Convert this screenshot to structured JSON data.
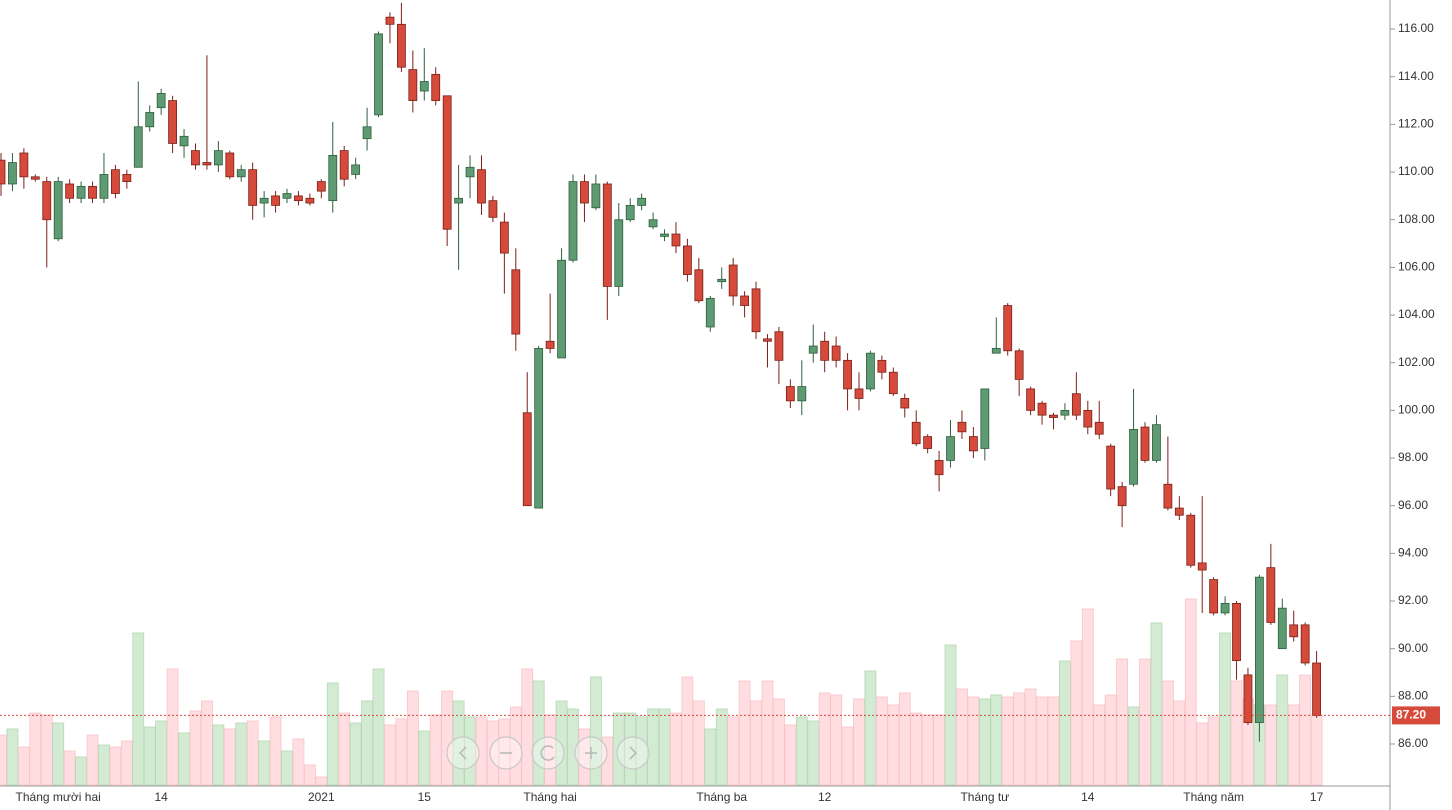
{
  "chart_data": {
    "type": "candlestick",
    "categories": [
      null,
      null,
      null,
      null,
      null,
      "Tháng mười hai",
      null,
      null,
      null,
      null,
      null,
      null,
      null,
      null,
      "14",
      null,
      null,
      null,
      null,
      null,
      null,
      null,
      null,
      null,
      null,
      null,
      null,
      null,
      "2021",
      null,
      null,
      null,
      null,
      null,
      null,
      null,
      null,
      "15",
      null,
      null,
      null,
      null,
      null,
      null,
      null,
      null,
      null,
      null,
      "Tháng hai",
      null,
      null,
      null,
      null,
      null,
      null,
      null,
      null,
      null,
      null,
      null,
      null,
      null,
      null,
      "Tháng ba",
      null,
      null,
      null,
      null,
      null,
      null,
      null,
      null,
      "12",
      null,
      null,
      null,
      null,
      null,
      null,
      null,
      null,
      null,
      null,
      null,
      null,
      null,
      "Tháng tư",
      null,
      null,
      null,
      null,
      null,
      null,
      null,
      null,
      "14",
      null,
      null,
      null,
      null,
      null,
      null,
      null,
      null,
      null,
      null,
      "Tháng năm",
      null,
      null,
      null,
      null,
      null,
      null,
      null,
      null,
      "17"
    ],
    "open": [
      110.5,
      109.5,
      110.8,
      109.8,
      109.6,
      107.2,
      109.5,
      108.9,
      109.4,
      108.9,
      110.1,
      109.9,
      110.2,
      111.9,
      112.7,
      113.0,
      111.1,
      110.9,
      110.4,
      110.3,
      110.8,
      109.8,
      110.1,
      108.7,
      109.0,
      108.9,
      109.0,
      108.9,
      109.6,
      108.8,
      110.9,
      109.9,
      111.4,
      112.4,
      116.5,
      116.2,
      114.3,
      113.4,
      114.1,
      113.2,
      108.7,
      109.8,
      110.1,
      108.8,
      107.9,
      105.9,
      99.9,
      95.9,
      102.9,
      102.2,
      106.3,
      109.6,
      108.5,
      109.5,
      105.2,
      108.0,
      108.6,
      107.7,
      107.3,
      107.4,
      106.9,
      105.9,
      103.5,
      105.4,
      106.1,
      104.8,
      105.1,
      103.0,
      103.3,
      101.0,
      100.4,
      102.4,
      102.9,
      102.7,
      102.1,
      100.9,
      100.9,
      102.1,
      101.6,
      100.5,
      99.5,
      98.9,
      97.9,
      97.9,
      99.5,
      98.9,
      98.4,
      102.4,
      104.4,
      102.5,
      100.9,
      100.3,
      99.8,
      99.8,
      100.7,
      100.0,
      99.5,
      98.5,
      96.8,
      96.9,
      99.3,
      97.9,
      96.9,
      95.9,
      95.6,
      93.6,
      92.9,
      91.5,
      91.9,
      88.9,
      86.9,
      93.4,
      90.0,
      91.0,
      91.0,
      89.4
    ],
    "high": [
      110.8,
      110.8,
      111,
      109.9,
      109.8,
      109.8,
      109.7,
      109.6,
      109.6,
      110.8,
      110.3,
      110.1,
      113.8,
      112.8,
      113.5,
      113.2,
      111.8,
      111.2,
      114.9,
      111.3,
      110.9,
      110.3,
      110.4,
      109.2,
      109.2,
      109.3,
      109.2,
      109.1,
      109.7,
      112.1,
      111.1,
      110.6,
      112.7,
      115.9,
      116.7,
      117.1,
      115.1,
      115.2,
      114.4,
      113.2,
      110.3,
      110.7,
      110.7,
      109.0,
      108.3,
      106.8,
      101.6,
      102.7,
      104.9,
      106.8,
      109.9,
      109.9,
      109.9,
      109.6,
      108.7,
      108.9,
      109.1,
      108.3,
      107.6,
      107.9,
      107.2,
      106.4,
      104.8,
      106.0,
      106.4,
      105.0,
      105.4,
      103.2,
      103.5,
      101.3,
      102.1,
      103.6,
      103.3,
      103.1,
      102.4,
      101.6,
      102.5,
      102.3,
      101.8,
      100.7,
      100.0,
      99.0,
      98.3,
      99.6,
      100.0,
      99.3,
      100.9,
      103.9,
      104.5,
      102.6,
      101.0,
      100.4,
      99.9,
      100.3,
      101.6,
      100.4,
      100.4,
      98.6,
      97.0,
      100.9,
      99.5,
      99.8,
      98.9,
      96.4,
      95.7,
      96.4,
      93.0,
      92.2,
      92.0,
      89.2,
      93.1,
      94.4,
      92.1,
      91.6,
      91.1,
      89.9
    ],
    "low": [
      109.0,
      109.2,
      109.3,
      109.6,
      106.0,
      107.1,
      108.7,
      108.7,
      108.7,
      108.7,
      108.9,
      109.3,
      110.2,
      111.7,
      112.4,
      110.8,
      110.6,
      110.1,
      110.1,
      110.0,
      109.7,
      109.6,
      108.0,
      108.1,
      108.3,
      108.7,
      108.6,
      108.6,
      108.9,
      108.3,
      109.4,
      109.7,
      110.9,
      112.3,
      115.4,
      114.2,
      112.5,
      113.0,
      112.8,
      106.9,
      105.9,
      108.9,
      108.2,
      107.9,
      104.9,
      102.5,
      96.0,
      95.9,
      102.4,
      102.2,
      106.2,
      107.9,
      108.4,
      103.8,
      104.8,
      107.9,
      108.4,
      107.6,
      107.1,
      106.6,
      105.4,
      104.5,
      103.3,
      105.1,
      104.4,
      103.9,
      103.0,
      101.8,
      101.1,
      100.1,
      99.8,
      102.0,
      101.6,
      101.8,
      100.0,
      100.0,
      100.8,
      101.3,
      100.6,
      99.7,
      98.5,
      98.2,
      96.6,
      97.6,
      98.8,
      98.0,
      97.9,
      102.4,
      102.3,
      100.6,
      99.8,
      99.4,
      99.2,
      99.6,
      99.6,
      99.0,
      98.8,
      96.4,
      95.1,
      96.8,
      97.8,
      97.8,
      95.8,
      95.4,
      93.4,
      91.5,
      91.4,
      91.4,
      88.7,
      86.8,
      86.1,
      91.0,
      90.0,
      90.3,
      89.3,
      87.1
    ],
    "close": [
      109.5,
      110.4,
      109.8,
      109.7,
      108.0,
      109.6,
      108.9,
      109.4,
      108.9,
      109.9,
      109.1,
      109.6,
      111.9,
      112.5,
      113.3,
      111.2,
      111.5,
      110.3,
      110.3,
      110.9,
      109.8,
      110.1,
      108.6,
      108.9,
      108.6,
      109.1,
      108.8,
      108.7,
      109.2,
      110.7,
      109.7,
      110.3,
      111.9,
      115.8,
      116.2,
      114.4,
      113.0,
      113.8,
      113.0,
      107.6,
      108.9,
      110.2,
      108.7,
      108.1,
      106.6,
      103.2,
      96.0,
      102.6,
      102.6,
      106.3,
      109.6,
      108.7,
      109.5,
      105.2,
      108.0,
      108.6,
      108.9,
      108.0,
      107.4,
      106.9,
      105.7,
      104.6,
      104.7,
      105.5,
      104.8,
      104.4,
      103.3,
      102.9,
      102.1,
      100.4,
      101.0,
      102.7,
      102.1,
      102.1,
      100.9,
      100.5,
      102.4,
      101.6,
      100.7,
      100.1,
      98.6,
      98.4,
      97.3,
      98.9,
      99.1,
      98.3,
      100.9,
      102.6,
      102.5,
      101.3,
      100.0,
      99.8,
      99.7,
      100.0,
      99.8,
      99.3,
      99.0,
      96.7,
      96.0,
      99.2,
      97.9,
      99.4,
      95.9,
      95.6,
      93.5,
      93.3,
      91.5,
      91.9,
      89.5,
      86.9,
      93.0,
      91.1,
      91.7,
      90.5,
      89.4,
      87.2
    ],
    "volume": [
      25,
      28,
      19,
      36,
      35,
      31,
      17,
      14,
      25,
      20,
      19,
      22,
      76,
      29,
      32,
      58,
      26,
      37,
      42,
      30,
      28,
      31,
      32,
      22,
      34,
      17,
      23,
      10,
      4,
      51,
      36,
      31,
      42,
      58,
      30,
      33,
      47,
      27,
      35,
      47,
      42,
      34,
      34,
      32,
      33,
      39,
      58,
      52,
      35,
      42,
      38,
      28,
      54,
      24,
      36,
      36,
      34,
      38,
      38,
      36,
      54,
      42,
      28,
      38,
      34,
      52,
      42,
      52,
      43,
      30,
      34,
      32,
      46,
      45,
      29,
      43,
      57,
      44,
      40,
      46,
      36,
      35,
      35,
      70,
      48,
      44,
      43,
      45,
      44,
      46,
      48,
      44,
      44,
      62,
      72,
      88,
      40,
      45,
      63,
      39,
      63,
      81,
      52,
      42,
      93,
      31,
      34,
      76,
      52,
      43,
      40,
      40,
      55,
      40,
      55,
      35
    ],
    "vlim": [
      0,
      100
    ],
    "up_color": "#5e9b72",
    "down_color": "#d54a3a",
    "up_volume_color": "#d3ebd3",
    "down_volume_color": "#ffdde0",
    "ylim": [
      84.28,
      117.22
    ],
    "yticks": [
      {
        "value": 86,
        "label": "86.00"
      },
      {
        "value": 88,
        "label": "88.00"
      },
      {
        "value": 90,
        "label": "90.00"
      },
      {
        "value": 92,
        "label": "92.00"
      },
      {
        "value": 94,
        "label": "94.00"
      },
      {
        "value": 96,
        "label": "96.00"
      },
      {
        "value": 98,
        "label": "98.00"
      },
      {
        "value": 100,
        "label": "100.00"
      },
      {
        "value": 102,
        "label": "102.00"
      },
      {
        "value": 104,
        "label": "104.00"
      },
      {
        "value": 106,
        "label": "106.00"
      },
      {
        "value": 108,
        "label": "108.00"
      },
      {
        "value": 110,
        "label": "110.00"
      },
      {
        "value": 112,
        "label": "112.00"
      },
      {
        "value": 114,
        "label": "114.00"
      },
      {
        "value": 116,
        "label": "116.00"
      }
    ],
    "last_price": {
      "value": 87.2,
      "label": "87.20"
    }
  }
}
